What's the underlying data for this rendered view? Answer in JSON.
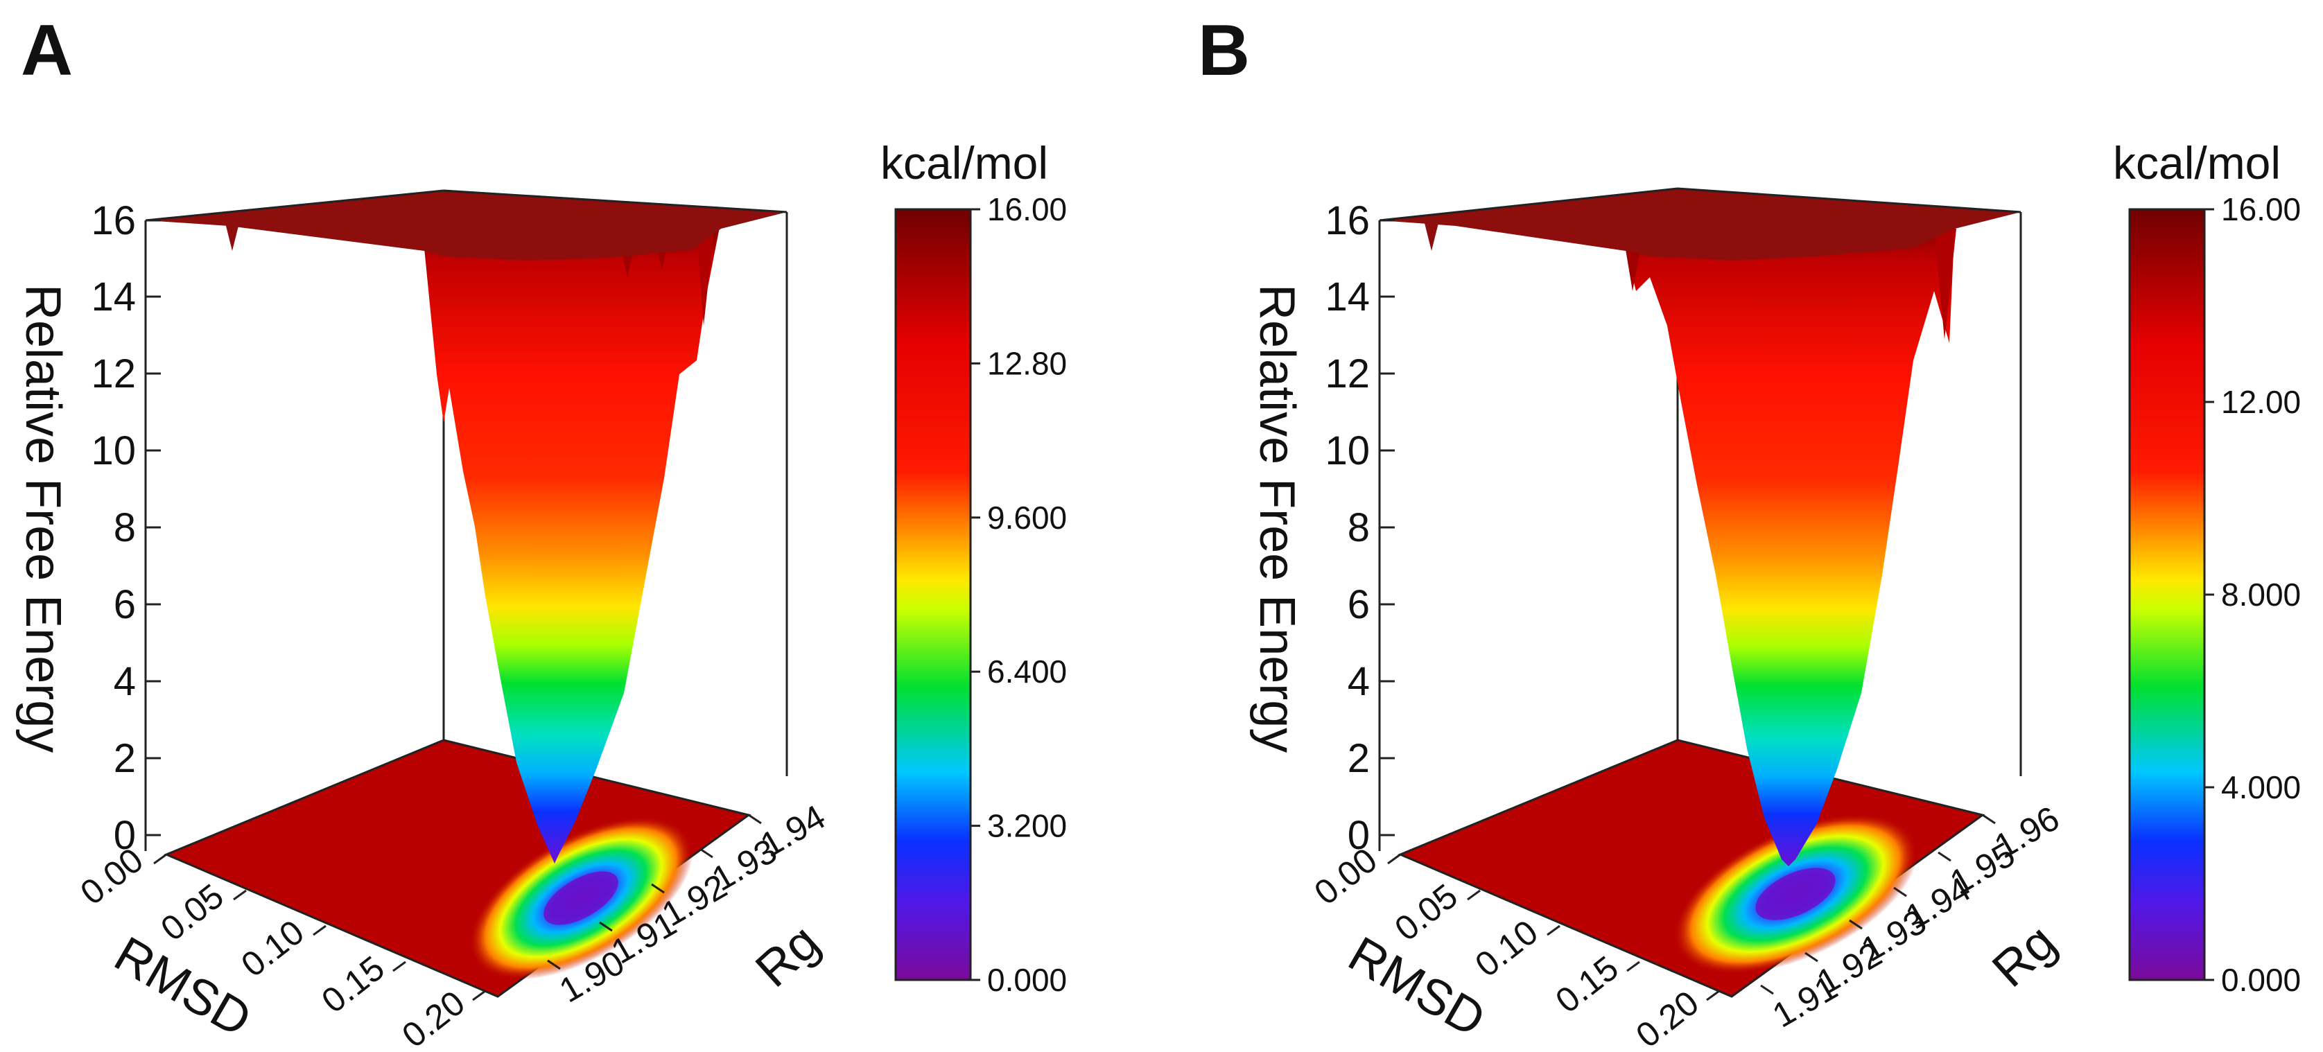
{
  "chart_data": [
    {
      "type": "surface3d",
      "panel_label": "A",
      "zlabel": "Relative Free Energy",
      "xlabel": "RMSD",
      "ylabel": "Rg",
      "z_ticks": [
        "0",
        "2",
        "4",
        "6",
        "8",
        "10",
        "12",
        "14",
        "16"
      ],
      "x_ticks": [
        "0.00",
        "0.05",
        "0.10",
        "0.15",
        "0.20"
      ],
      "y_ticks": [
        "1.90",
        "1.91",
        "1.92",
        "1.93",
        "1.94"
      ],
      "zlim": [
        0,
        16
      ],
      "minimum": {
        "rmsd": 0.17,
        "rg": 1.915,
        "energy": 0
      },
      "colorbar": {
        "title": "kcal/mol",
        "ticks": [
          "0.000",
          "3.200",
          "6.400",
          "9.600",
          "12.80",
          "16.00"
        ],
        "range": [
          0,
          16
        ]
      }
    },
    {
      "type": "surface3d",
      "panel_label": "B",
      "zlabel": "Relative Free Energy",
      "xlabel": "RMSD",
      "ylabel": "Rg",
      "z_ticks": [
        "0",
        "2",
        "4",
        "6",
        "8",
        "10",
        "12",
        "14",
        "16"
      ],
      "x_ticks": [
        "0.00",
        "0.05",
        "0.10",
        "0.15",
        "0.20"
      ],
      "y_ticks": [
        "1.91",
        "1.92",
        "1.93",
        "1.94",
        "1.95",
        "1.96"
      ],
      "zlim": [
        0,
        16
      ],
      "minimum": {
        "rmsd": 0.17,
        "rg": 1.935,
        "energy": 0
      },
      "colorbar": {
        "title": "kcal/mol",
        "ticks": [
          "0.000",
          "4.000",
          "8.000",
          "12.00",
          "16.00"
        ],
        "range": [
          0,
          16
        ]
      }
    }
  ],
  "colors": {
    "rainbow": [
      "#7a0a9a",
      "#5a18e0",
      "#0a3cff",
      "#00c8ff",
      "#00e03a",
      "#c8ff00",
      "#ffe800",
      "#ff8c00",
      "#ff1a00",
      "#e00000",
      "#7a0000"
    ],
    "plateau": "#8e0d0d",
    "base": "#b80000"
  }
}
